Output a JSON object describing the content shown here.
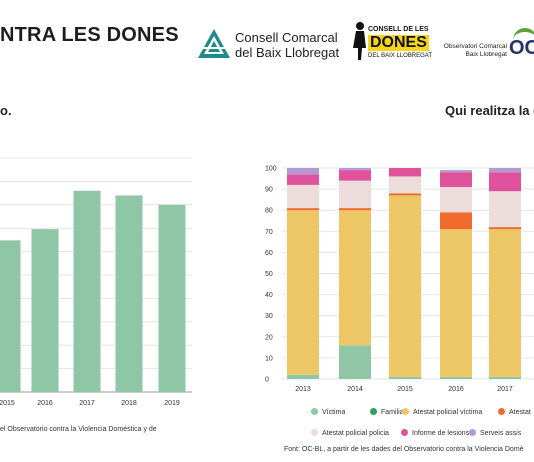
{
  "header": {
    "title": "NTRA LES DONES",
    "consell_line1": "Consell Comarcal",
    "consell_line2": "del Baix Llobregat",
    "dones_line1": "CONSELL DE LES",
    "dones_line2": "DONES",
    "dones_line3": "DEL BAIX LLOBREGAT",
    "obs_line1": "Observatori Comarcal",
    "obs_line2": "Baix Llobregat",
    "obs_mark": "OC",
    "colors": {
      "teal": "#1f8a8a",
      "green": "#5aa43c",
      "yellow": "#f6d51a",
      "navy": "#23336b"
    }
  },
  "left_panel": {
    "subtitle": "o.",
    "source": "el Observatorio contra la Violencia Doméstica y de"
  },
  "right_panel": {
    "title": "Qui realitza la d",
    "source": "Font: OC-BL, a partir de les dades del Observatorio contra la Violencia Domè"
  },
  "chart_data": [
    {
      "type": "bar",
      "categories": [
        "2015",
        "2016",
        "2017",
        "2018",
        "2019"
      ],
      "values": [
        162,
        174,
        215,
        210,
        200
      ],
      "ylim": [
        0,
        250
      ],
      "grid": true,
      "color": "#8fc6a6"
    },
    {
      "type": "bar",
      "stacked": true,
      "categories": [
        "2013",
        "2014",
        "2015",
        "2016",
        "2017"
      ],
      "yticks": [
        "0",
        "10",
        "20",
        "30",
        "40",
        "50",
        "60",
        "70",
        "80",
        "90",
        "100"
      ],
      "ylim": [
        0,
        100
      ],
      "grid": true,
      "legend_position": "bottom",
      "series": [
        {
          "name": "Víctima",
          "color": "#8fc6a6",
          "values": [
            2,
            16,
            1,
            1,
            1
          ]
        },
        {
          "name": "Familiar",
          "color": "#2e9e5b",
          "values": [
            0,
            0,
            0,
            0,
            0
          ]
        },
        {
          "name": "Atestat policial víctima",
          "color": "#edc766",
          "values": [
            78,
            64,
            86,
            70,
            70
          ]
        },
        {
          "name": "Atestat",
          "color": "#f06b2c",
          "values": [
            1,
            1,
            1,
            8,
            1
          ]
        },
        {
          "name": "Atestat policial policia",
          "color": "#ecdcda",
          "values": [
            11,
            13,
            8,
            12,
            17
          ]
        },
        {
          "name": "Informe de lesions",
          "color": "#e0529b",
          "values": [
            5,
            5,
            4,
            7,
            9
          ]
        },
        {
          "name": "Serveis assis",
          "color": "#b39ad3",
          "values": [
            3,
            1,
            0,
            1,
            2
          ]
        }
      ]
    }
  ]
}
